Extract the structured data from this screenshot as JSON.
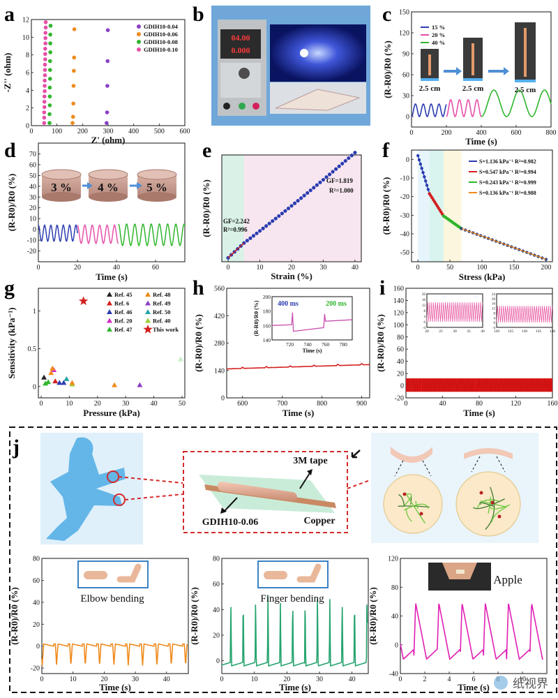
{
  "figure": {
    "panels": [
      "a",
      "b",
      "c",
      "d",
      "e",
      "f",
      "g",
      "h",
      "i",
      "j"
    ],
    "watermark": "纸视界"
  },
  "colors": {
    "blue": "#2b3cb0",
    "pink": "#e64fa8",
    "green": "#2fb52c",
    "orange": "#ef8a1c",
    "red": "#d41f1f",
    "teal": "#26a46e",
    "magenta": "#d42ac0",
    "purple": "#8a3fc4",
    "darkred": "#c0392b"
  },
  "chart_data": [
    {
      "panel": "a",
      "type": "scatter",
      "xlabel": "Z' (ohm)",
      "ylabel": "-Z'' (ohm)",
      "xlim": [
        0,
        600
      ],
      "ylim": [
        0,
        12
      ],
      "xticks": [
        0,
        100,
        200,
        300,
        400,
        500,
        600
      ],
      "yticks": [
        0,
        2,
        4,
        6,
        8,
        10,
        12
      ],
      "series": [
        {
          "name": "GDIH10-0.04",
          "color": "#8a3fc4",
          "points": [
            [
              294,
              0.3
            ],
            [
              296,
              1.5
            ],
            [
              297,
              4.5
            ],
            [
              298,
              7.3
            ],
            [
              299,
              10.8
            ]
          ]
        },
        {
          "name": "GDIH10-0.06",
          "color": "#ef8a1c",
          "points": [
            [
              161,
              0.3
            ],
            [
              163,
              1.0
            ],
            [
              164,
              2.5
            ],
            [
              165,
              4.5
            ],
            [
              166,
              6.2
            ],
            [
              167,
              7.7
            ],
            [
              168,
              10.9
            ]
          ]
        },
        {
          "name": "GDIH10-0.08",
          "color": "#2fb52c",
          "points": [
            [
              71,
              0.3
            ],
            [
              71,
              1.3
            ],
            [
              72,
              2.3
            ],
            [
              72,
              3.3
            ],
            [
              72,
              4.3
            ],
            [
              73,
              5.3
            ],
            [
              73,
              6.3
            ],
            [
              73,
              7.3
            ],
            [
              74,
              8.3
            ],
            [
              74,
              9.3
            ],
            [
              74,
              10.3
            ],
            [
              75,
              11.3
            ]
          ]
        },
        {
          "name": "GDIH10-0.10",
          "color": "#e64fa8",
          "points": [
            [
              50,
              0.3
            ],
            [
              50,
              0.9
            ],
            [
              50,
              1.5
            ],
            [
              51,
              2.1
            ],
            [
              51,
              2.7
            ],
            [
              51,
              3.3
            ],
            [
              52,
              3.9
            ],
            [
              52,
              4.5
            ],
            [
              52,
              5.1
            ],
            [
              53,
              5.7
            ],
            [
              53,
              6.3
            ],
            [
              53,
              6.9
            ],
            [
              54,
              7.5
            ],
            [
              54,
              8.1
            ],
            [
              54,
              8.7
            ],
            [
              55,
              9.3
            ],
            [
              55,
              9.9
            ],
            [
              55,
              10.5
            ],
            [
              56,
              11.1
            ],
            [
              56,
              11.7
            ]
          ]
        }
      ]
    },
    {
      "panel": "c",
      "type": "line",
      "xlabel": "Time (s)",
      "ylabel": "(R-R0)/R0 (%)",
      "xlim": [
        0,
        800
      ],
      "ylim": [
        -15,
        150
      ],
      "xticks": [
        0,
        200,
        400,
        600,
        800
      ],
      "yticks": [
        0,
        30,
        60,
        90,
        120,
        150
      ],
      "labels": {
        "length": "2.5 cm"
      },
      "series": [
        {
          "name": "15 %",
          "color": "#2b3cb0",
          "amplitude": 9,
          "offset": 9,
          "period": 45,
          "range": [
            0,
            200
          ]
        },
        {
          "name": "20 %",
          "color": "#e64fa8",
          "amplitude": 12,
          "offset": 12,
          "period": 50,
          "range": [
            200,
            400
          ]
        },
        {
          "name": "40 %",
          "color": "#2fb52c",
          "amplitude": 19,
          "offset": 19,
          "period": 145,
          "range": [
            400,
            800
          ]
        }
      ]
    },
    {
      "panel": "d",
      "type": "line",
      "xlabel": "Time (s)",
      "ylabel": "(R-R0)/R0 (%)",
      "xlim": [
        0,
        75
      ],
      "ylim": [
        -30,
        80
      ],
      "xticks": [
        0,
        20,
        40,
        60
      ],
      "yticks": [
        -20,
        -10,
        0,
        10,
        20,
        30,
        40,
        50,
        60,
        70
      ],
      "labels": [
        "3 %",
        "4 %",
        "5 %"
      ],
      "series": [
        {
          "name": "3 %",
          "color": "#2b3cb0",
          "min": -11,
          "max": 4,
          "period": 3.2,
          "range": [
            0,
            20
          ]
        },
        {
          "name": "4 %",
          "color": "#e64fa8",
          "min": -13,
          "max": 4,
          "period": 3.8,
          "range": [
            20,
            41
          ]
        },
        {
          "name": "5 %",
          "color": "#2fb52c",
          "min": -15,
          "max": 5,
          "period": 4.2,
          "range": [
            41,
            75
          ]
        }
      ]
    },
    {
      "panel": "e",
      "type": "scatter",
      "xlabel": "Strain (%)",
      "ylabel": "(R-R0)/R0 (%)",
      "xlim": [
        -2,
        42
      ],
      "ylim": [
        -3,
        78
      ],
      "xticks": [
        0,
        10,
        20,
        30,
        40
      ],
      "yticks": [],
      "series": [
        {
          "name": "data",
          "color": "#2b3cb0",
          "x_start": 0,
          "x_end": 40,
          "n": 41
        }
      ],
      "fits": [
        {
          "label": "GF=2.242",
          "r2": "R²=0.996",
          "range": [
            0,
            5
          ],
          "color": "#d41f1f",
          "shade": "#d9f1e6"
        },
        {
          "label": "GF=1.819",
          "r2": "R²=1.000",
          "range": [
            5,
            40
          ],
          "color": "#d41f1f",
          "shade": "#f7e6ef"
        }
      ]
    },
    {
      "panel": "f",
      "type": "scatter",
      "xlabel": "Stress (kPa)",
      "ylabel": "(R-R0)/R0 (%)",
      "xlim": [
        -10,
        210
      ],
      "ylim": [
        -55,
        5
      ],
      "xticks": [
        0,
        50,
        100,
        150,
        200
      ],
      "yticks": [
        0,
        -10,
        -20,
        -30,
        -40,
        -50
      ],
      "series": [
        {
          "name": "S=1.136 kPa⁻¹ R²=0.982",
          "color": "#2b3cb0",
          "range": [
            0,
            18
          ]
        },
        {
          "name": "S=0.547 kPa⁻¹ R²=0.994",
          "color": "#d41f1f",
          "range": [
            18,
            40
          ]
        },
        {
          "name": "S=0.243 kPa⁻¹ R²=0.999",
          "color": "#2fb52c",
          "range": [
            40,
            68
          ]
        },
        {
          "name": "S=0.136 kPa⁻¹ R²=0.988",
          "color": "#ef8a1c",
          "range": [
            68,
            200
          ]
        }
      ]
    },
    {
      "panel": "g",
      "type": "scatter",
      "xlabel": "Pressure (kPa)",
      "ylabel": "Sensitivity (kPa⁻¹)",
      "xlim": [
        -1,
        51
      ],
      "ylim": [
        -0.15,
        1.3
      ],
      "xticks": [
        0,
        10,
        20,
        30,
        40,
        50
      ],
      "yticks": [
        0.0,
        0.5,
        1.0
      ],
      "series": [
        {
          "name": "Ref. 45",
          "color": "#222222",
          "x": 1.0,
          "y": 0.12
        },
        {
          "name": "Ref. 48",
          "color": "#ef8a1c",
          "x": 26,
          "y": 0.02
        },
        {
          "name": "Ref. 6",
          "color": "#d41f1f",
          "x": 5.0,
          "y": 0.07
        },
        {
          "name": "Ref. 49",
          "color": "#8a3fc4",
          "x": 35,
          "y": 0.02
        },
        {
          "name": "Ref. 46",
          "color": "#2b3cb0",
          "x": 8.0,
          "y": 0.05
        },
        {
          "name": "Ref. 50",
          "color": "#26a4a4",
          "x": 9.0,
          "y": 0.1
        },
        {
          "name": "Ref. 20",
          "color": "#d42ac0",
          "x": 4.5,
          "y": 0.22
        },
        {
          "name": "Ref. 40",
          "color": "#9acd32",
          "x": 11.0,
          "y": 0.03
        },
        {
          "name": "Ref. 47",
          "color": "#2fb52c",
          "x": 1.5,
          "y": 0.04
        },
        {
          "name": "This work",
          "color": "#d41f1f",
          "x": 15,
          "y": 1.13,
          "marker": "star"
        }
      ],
      "extra_points": [
        [
          2.5,
          0.06,
          "#2fb52c"
        ],
        [
          3.5,
          0.18,
          "#ef8a1c"
        ],
        [
          4.0,
          0.24,
          "#ef8a1c"
        ],
        [
          6.5,
          0.05,
          "#2b3cb0"
        ],
        [
          11,
          0.05,
          "#ef8a1c"
        ],
        [
          49.5,
          0.36,
          "#c8f0c8"
        ]
      ]
    },
    {
      "panel": "h",
      "type": "line",
      "xlabel": "Time (s)",
      "ylabel": "(R-R0)/R0 (%)",
      "xlim": [
        560,
        920
      ],
      "ylim": [
        0,
        560
      ],
      "xticks": [
        600,
        700,
        800,
        900
      ],
      "yticks": [
        0,
        140,
        280,
        420,
        560
      ],
      "series": [
        {
          "name": "signal",
          "color": "#d41f1f",
          "start": 148,
          "end": 170
        }
      ],
      "inset": {
        "xlabel": "Time (s)",
        "ylabel": "(R-R0)/R0 (%)",
        "xlim": [
          700,
          790
        ],
        "ylim": [
          140,
          200
        ],
        "xticks": [
          720,
          740,
          760,
          780
        ],
        "yticks": [
          140,
          160,
          180,
          200
        ],
        "labels": [
          "400 ms",
          "200 ms"
        ],
        "label_colors": [
          "#2b3cb0",
          "#2fb52c"
        ]
      }
    },
    {
      "panel": "i",
      "type": "line",
      "xlabel": "Time (s)",
      "ylabel": "(R-R0)/R0 (%)",
      "xlim": [
        0,
        160
      ],
      "ylim": [
        -20,
        160
      ],
      "xticks": [
        0,
        40,
        80,
        120,
        160
      ],
      "yticks": [
        -20,
        0,
        20,
        40,
        60,
        80,
        100,
        120,
        140,
        160
      ],
      "series": [
        {
          "name": "signal",
          "color": "#e81a1a",
          "min": -10,
          "max": 12
        }
      ],
      "insets": [
        {
          "xlim": [
            20,
            40
          ],
          "ylim": [
            -4,
            20
          ],
          "xticks": [
            20,
            25,
            30,
            35,
            40
          ],
          "yticks": [
            -4,
            0,
            4,
            8,
            12,
            16,
            20
          ]
        },
        {
          "xlim": [
            120,
            140
          ],
          "ylim": [
            -4,
            24
          ],
          "xticks": [
            120,
            125,
            130,
            135,
            140
          ],
          "yticks": [
            -4,
            0,
            4,
            8,
            12,
            16,
            20,
            24
          ]
        }
      ]
    },
    {
      "panel": "j-elbow",
      "type": "line",
      "xlabel": "Time (s)",
      "ylabel": "(R-R0)/R0 (%)",
      "caption": "Elbow bending",
      "xlim": [
        0,
        47
      ],
      "ylim": [
        -25,
        80
      ],
      "xticks": [
        0,
        10,
        20,
        30,
        40
      ],
      "yticks": [
        -20,
        0,
        20,
        40,
        60,
        80
      ],
      "series": [
        {
          "name": "elbow",
          "color": "#ef8a1c",
          "min": -18,
          "max": 2,
          "period": 4.6
        }
      ]
    },
    {
      "panel": "j-finger",
      "type": "line",
      "xlabel": "Time (s)",
      "ylabel": "(R-R0)/R0 (%)",
      "caption": "Finger bending",
      "xlim": [
        0,
        45
      ],
      "ylim": [
        -10,
        80
      ],
      "xticks": [
        0,
        10,
        20,
        30,
        40
      ],
      "yticks": [
        0,
        20,
        40,
        60,
        80
      ],
      "series": [
        {
          "name": "finger",
          "color": "#26a46e",
          "min": -4,
          "max": 52,
          "period": 3.8
        }
      ]
    },
    {
      "panel": "j-apple",
      "type": "line",
      "xlabel": "Time (s)",
      "ylabel": "(R-R0)/R0 (%)",
      "caption": "Apple",
      "xlim": [
        0,
        12
      ],
      "ylim": [
        -40,
        120
      ],
      "xticks": [
        0,
        2,
        4,
        6,
        8,
        10
      ],
      "yticks": [
        -40,
        0,
        40,
        80,
        120
      ],
      "series": [
        {
          "name": "apple",
          "color": "#e01eb4",
          "min": -20,
          "max": 58,
          "period": 1.9
        }
      ]
    }
  ],
  "panel_text": {
    "a_legend": [
      "GDIH10-0.04",
      "GDIH10-0.06",
      "GDIH10-0.08",
      "GDIH10-0.10"
    ],
    "c_legend": [
      "15 %",
      "20 %",
      "40 %"
    ],
    "c_len": [
      "2.5 cm",
      "2.5 cm",
      "2.5 cm"
    ],
    "d_labels": [
      "3 %",
      "4 %",
      "5 %"
    ],
    "e_fit1": "GF=2.242",
    "e_r1": "R²=0.996",
    "e_fit2": "GF=1.819",
    "e_r2": "R²=1.000",
    "f_legend": [
      "S=1.136 kPa⁻¹ R²=0.982",
      "S=0.547 kPa⁻¹ R²=0.994",
      "S=0.243 kPa⁻¹ R²=0.999",
      "S=0.136 kPa⁻¹ R²=0.988"
    ],
    "g_legend": [
      "Ref. 45",
      "Ref. 48",
      "Ref. 6",
      "Ref. 49",
      "Ref. 46",
      "Ref. 50",
      "Ref. 20",
      "Ref. 40",
      "Ref. 47",
      "This work"
    ],
    "b_display": [
      "04.00",
      "0.000"
    ],
    "j_device": {
      "tape": "3M tape",
      "sample": "GDIH10-0.06",
      "copper": "Copper"
    }
  }
}
